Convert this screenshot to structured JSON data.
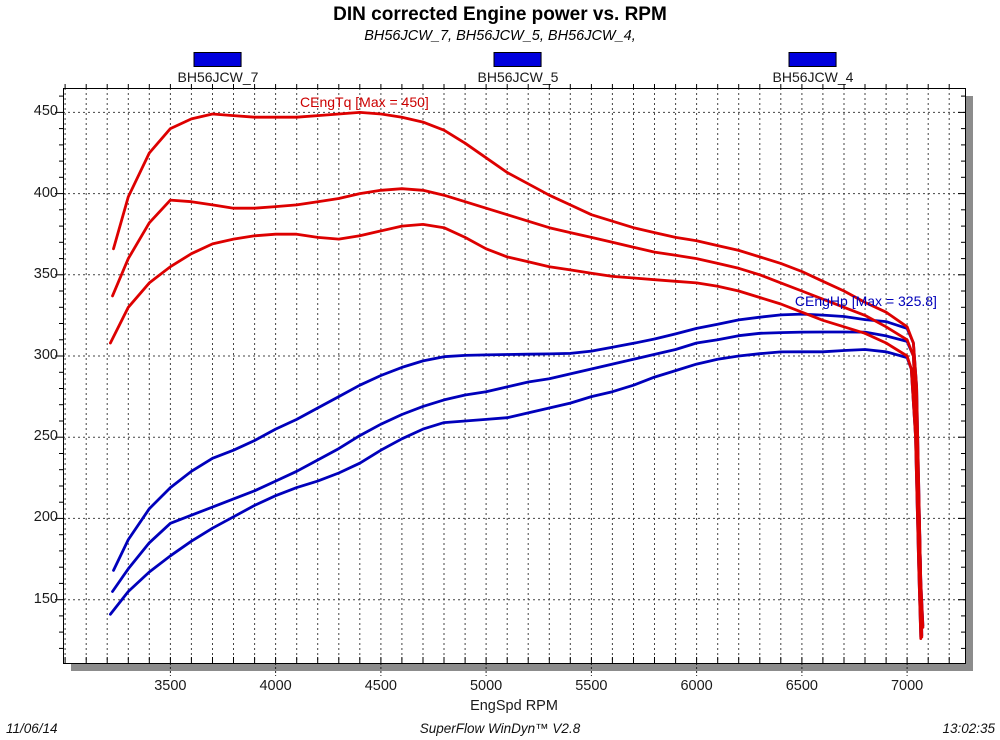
{
  "header": {
    "title": "DIN corrected Engine power vs. RPM",
    "subtitle": "BH56JCW_7, BH56JCW_5, BH56JCW_4,"
  },
  "legend": {
    "swatch_color": "#0000dd",
    "items": [
      {
        "label": "BH56JCW_7"
      },
      {
        "label": "BH56JCW_5"
      },
      {
        "label": "BH56JCW_4"
      }
    ]
  },
  "chart_data": {
    "type": "line",
    "title": "DIN corrected Engine power vs. RPM",
    "subtitle": "BH56JCW_7, BH56JCW_5, BH56JCW_4,",
    "xlabel": "EngSpd RPM",
    "ylabel": "",
    "xlim": [
      2990,
      7275
    ],
    "ylim": [
      111,
      465
    ],
    "x_major_ticks": [
      3500,
      4000,
      4500,
      5000,
      5500,
      6000,
      6500,
      7000
    ],
    "x_minor_step": 100,
    "y_major_ticks": [
      150,
      200,
      250,
      300,
      350,
      400,
      450
    ],
    "y_minor_step": 10,
    "grid": "dashed-both-directions",
    "legend_position": "top",
    "colors": {
      "torque": "#dd0000",
      "power": "#0000bb",
      "grid": "#444444",
      "frame": "#000000",
      "shadow": "#8c8c8c",
      "background": "#ffffff"
    },
    "annotations": [
      {
        "text": "CEngTq [Max = 450]",
        "color": "#cc0000",
        "rpm": 4116,
        "value": 456
      },
      {
        "text": "CEngHp [Max = 325.8]",
        "color": "#0000bb",
        "rpm": 6467,
        "value": 333
      }
    ],
    "series": [
      {
        "id": "hp-7",
        "run": "BH56JCW_7",
        "channel": "CEngHp",
        "color": "#0000bb",
        "points": [
          [
            3230,
            168
          ],
          [
            3300,
            187
          ],
          [
            3400,
            206
          ],
          [
            3500,
            219
          ],
          [
            3600,
            229
          ],
          [
            3700,
            237
          ],
          [
            3800,
            242
          ],
          [
            3900,
            248
          ],
          [
            4000,
            255
          ],
          [
            4100,
            261
          ],
          [
            4200,
            268
          ],
          [
            4300,
            275
          ],
          [
            4400,
            282
          ],
          [
            4500,
            288
          ],
          [
            4600,
            293
          ],
          [
            4700,
            297
          ],
          [
            4800,
            299.6
          ],
          [
            4900,
            300.4
          ],
          [
            5000,
            300.7
          ],
          [
            5100,
            300.9
          ],
          [
            5200,
            301.1
          ],
          [
            5300,
            301.3
          ],
          [
            5400,
            301.6
          ],
          [
            5500,
            303
          ],
          [
            5600,
            305.4
          ],
          [
            5700,
            307.8
          ],
          [
            5800,
            310.5
          ],
          [
            5900,
            313.6
          ],
          [
            6000,
            317
          ],
          [
            6100,
            319.6
          ],
          [
            6200,
            322.2
          ],
          [
            6300,
            323.9
          ],
          [
            6400,
            325.3
          ],
          [
            6500,
            325.8
          ],
          [
            6600,
            325.2
          ],
          [
            6700,
            324.3
          ],
          [
            6800,
            322.4
          ],
          [
            6900,
            321.2
          ],
          [
            7000,
            317
          ],
          [
            7030,
            308
          ],
          [
            7045,
            281
          ],
          [
            7060,
            191
          ],
          [
            7070,
            128
          ]
        ]
      },
      {
        "id": "hp-5",
        "run": "BH56JCW_5",
        "channel": "CEngHp",
        "color": "#0000bb",
        "points": [
          [
            3225,
            155
          ],
          [
            3300,
            169
          ],
          [
            3400,
            185
          ],
          [
            3500,
            197
          ],
          [
            3600,
            202
          ],
          [
            3700,
            207
          ],
          [
            3800,
            212
          ],
          [
            3900,
            217
          ],
          [
            4000,
            223
          ],
          [
            4100,
            229
          ],
          [
            4200,
            236
          ],
          [
            4300,
            243
          ],
          [
            4400,
            251
          ],
          [
            4500,
            258
          ],
          [
            4600,
            264
          ],
          [
            4700,
            269
          ],
          [
            4800,
            273
          ],
          [
            4900,
            276
          ],
          [
            5000,
            278
          ],
          [
            5100,
            281
          ],
          [
            5200,
            284
          ],
          [
            5300,
            286
          ],
          [
            5400,
            289
          ],
          [
            5500,
            292
          ],
          [
            5600,
            295
          ],
          [
            5700,
            298
          ],
          [
            5800,
            301
          ],
          [
            5900,
            304
          ],
          [
            6000,
            308
          ],
          [
            6100,
            310
          ],
          [
            6200,
            312.5
          ],
          [
            6300,
            314
          ],
          [
            6400,
            314.4
          ],
          [
            6500,
            314.7
          ],
          [
            6600,
            314.8
          ],
          [
            6700,
            314.8
          ],
          [
            6800,
            314.7
          ],
          [
            6900,
            312.4
          ],
          [
            7000,
            309
          ],
          [
            7030,
            300
          ],
          [
            7050,
            241
          ],
          [
            7065,
            161
          ],
          [
            7075,
            134
          ]
        ]
      },
      {
        "id": "hp-4",
        "run": "BH56JCW_4",
        "channel": "CEngHp",
        "color": "#0000bb",
        "points": [
          [
            3215,
            141
          ],
          [
            3300,
            155
          ],
          [
            3400,
            167
          ],
          [
            3500,
            177
          ],
          [
            3600,
            186
          ],
          [
            3700,
            194
          ],
          [
            3800,
            201
          ],
          [
            3900,
            208
          ],
          [
            4000,
            214
          ],
          [
            4100,
            219
          ],
          [
            4200,
            223
          ],
          [
            4300,
            228
          ],
          [
            4400,
            234
          ],
          [
            4500,
            242
          ],
          [
            4600,
            249
          ],
          [
            4700,
            255
          ],
          [
            4800,
            259
          ],
          [
            4900,
            260
          ],
          [
            5000,
            261
          ],
          [
            5100,
            262
          ],
          [
            5200,
            265
          ],
          [
            5300,
            268
          ],
          [
            5400,
            271
          ],
          [
            5500,
            275
          ],
          [
            5600,
            278
          ],
          [
            5700,
            282
          ],
          [
            5800,
            287
          ],
          [
            5900,
            291
          ],
          [
            6000,
            295
          ],
          [
            6100,
            298
          ],
          [
            6200,
            300
          ],
          [
            6300,
            301.4
          ],
          [
            6400,
            302.5
          ],
          [
            6500,
            302.6
          ],
          [
            6600,
            302.6
          ],
          [
            6700,
            303.4
          ],
          [
            6800,
            304
          ],
          [
            6900,
            302.6
          ],
          [
            7000,
            299
          ],
          [
            7020,
            292
          ],
          [
            7040,
            251
          ],
          [
            7055,
            171
          ],
          [
            7065,
            127
          ]
        ]
      },
      {
        "id": "tq-7",
        "run": "BH56JCW_7",
        "channel": "CEngTq",
        "color": "#dd0000",
        "points": [
          [
            3230,
            366
          ],
          [
            3300,
            398
          ],
          [
            3400,
            425
          ],
          [
            3500,
            440
          ],
          [
            3600,
            446
          ],
          [
            3700,
            449
          ],
          [
            3800,
            448
          ],
          [
            3900,
            447
          ],
          [
            4000,
            447
          ],
          [
            4100,
            447
          ],
          [
            4200,
            448
          ],
          [
            4300,
            449
          ],
          [
            4400,
            450
          ],
          [
            4500,
            449
          ],
          [
            4600,
            447
          ],
          [
            4700,
            444
          ],
          [
            4800,
            439
          ],
          [
            4900,
            431
          ],
          [
            5000,
            422
          ],
          [
            5100,
            413
          ],
          [
            5200,
            406
          ],
          [
            5300,
            399
          ],
          [
            5400,
            393
          ],
          [
            5500,
            387
          ],
          [
            5600,
            383
          ],
          [
            5700,
            379
          ],
          [
            5800,
            376
          ],
          [
            5900,
            373
          ],
          [
            6000,
            371
          ],
          [
            6100,
            368
          ],
          [
            6200,
            365
          ],
          [
            6300,
            361
          ],
          [
            6400,
            357
          ],
          [
            6500,
            352
          ],
          [
            6600,
            346
          ],
          [
            6700,
            340
          ],
          [
            6800,
            333
          ],
          [
            6900,
            327
          ],
          [
            7000,
            318
          ],
          [
            7030,
            308
          ],
          [
            7045,
            281
          ],
          [
            7060,
            191
          ],
          [
            7070,
            127
          ]
        ]
      },
      {
        "id": "tq-5",
        "run": "BH56JCW_5",
        "channel": "CEngTq",
        "color": "#dd0000",
        "points": [
          [
            3225,
            337
          ],
          [
            3300,
            360
          ],
          [
            3400,
            382
          ],
          [
            3500,
            396
          ],
          [
            3600,
            395
          ],
          [
            3700,
            393
          ],
          [
            3800,
            391
          ],
          [
            3900,
            391
          ],
          [
            4000,
            392
          ],
          [
            4100,
            393
          ],
          [
            4200,
            395
          ],
          [
            4300,
            397
          ],
          [
            4400,
            400
          ],
          [
            4500,
            402
          ],
          [
            4600,
            403
          ],
          [
            4700,
            402
          ],
          [
            4800,
            399
          ],
          [
            4900,
            395
          ],
          [
            5000,
            391
          ],
          [
            5100,
            387
          ],
          [
            5200,
            383
          ],
          [
            5300,
            379
          ],
          [
            5400,
            376
          ],
          [
            5500,
            373
          ],
          [
            5600,
            370
          ],
          [
            5700,
            367
          ],
          [
            5800,
            364
          ],
          [
            5900,
            362
          ],
          [
            6000,
            360
          ],
          [
            6100,
            357
          ],
          [
            6200,
            354
          ],
          [
            6300,
            350
          ],
          [
            6400,
            345
          ],
          [
            6500,
            340
          ],
          [
            6600,
            335
          ],
          [
            6700,
            330
          ],
          [
            6800,
            325
          ],
          [
            6900,
            318
          ],
          [
            7000,
            310
          ],
          [
            7030,
            300
          ],
          [
            7050,
            241
          ],
          [
            7065,
            161
          ],
          [
            7075,
            133
          ]
        ]
      },
      {
        "id": "tq-4",
        "run": "BH56JCW_4",
        "channel": "CEngTq",
        "color": "#dd0000",
        "points": [
          [
            3215,
            308
          ],
          [
            3300,
            330
          ],
          [
            3400,
            345
          ],
          [
            3500,
            355
          ],
          [
            3600,
            363
          ],
          [
            3700,
            369
          ],
          [
            3800,
            372
          ],
          [
            3900,
            374
          ],
          [
            4000,
            375
          ],
          [
            4100,
            375
          ],
          [
            4200,
            373
          ],
          [
            4300,
            372
          ],
          [
            4400,
            374
          ],
          [
            4500,
            377
          ],
          [
            4600,
            380
          ],
          [
            4700,
            381
          ],
          [
            4800,
            379
          ],
          [
            4900,
            373
          ],
          [
            5000,
            366
          ],
          [
            5100,
            361
          ],
          [
            5200,
            358
          ],
          [
            5300,
            355
          ],
          [
            5400,
            353
          ],
          [
            5500,
            351
          ],
          [
            5600,
            349
          ],
          [
            5700,
            348
          ],
          [
            5800,
            347
          ],
          [
            5900,
            346
          ],
          [
            6000,
            345
          ],
          [
            6100,
            343
          ],
          [
            6200,
            340
          ],
          [
            6300,
            336
          ],
          [
            6400,
            332
          ],
          [
            6500,
            327
          ],
          [
            6600,
            322
          ],
          [
            6700,
            318
          ],
          [
            6800,
            314
          ],
          [
            6900,
            308
          ],
          [
            7000,
            300
          ],
          [
            7020,
            292
          ],
          [
            7040,
            251
          ],
          [
            7055,
            171
          ],
          [
            7065,
            126
          ]
        ]
      }
    ]
  },
  "footer": {
    "date": "11/06/14",
    "app": "SuperFlow WinDyn™ V2.8",
    "time": "13:02:35"
  }
}
